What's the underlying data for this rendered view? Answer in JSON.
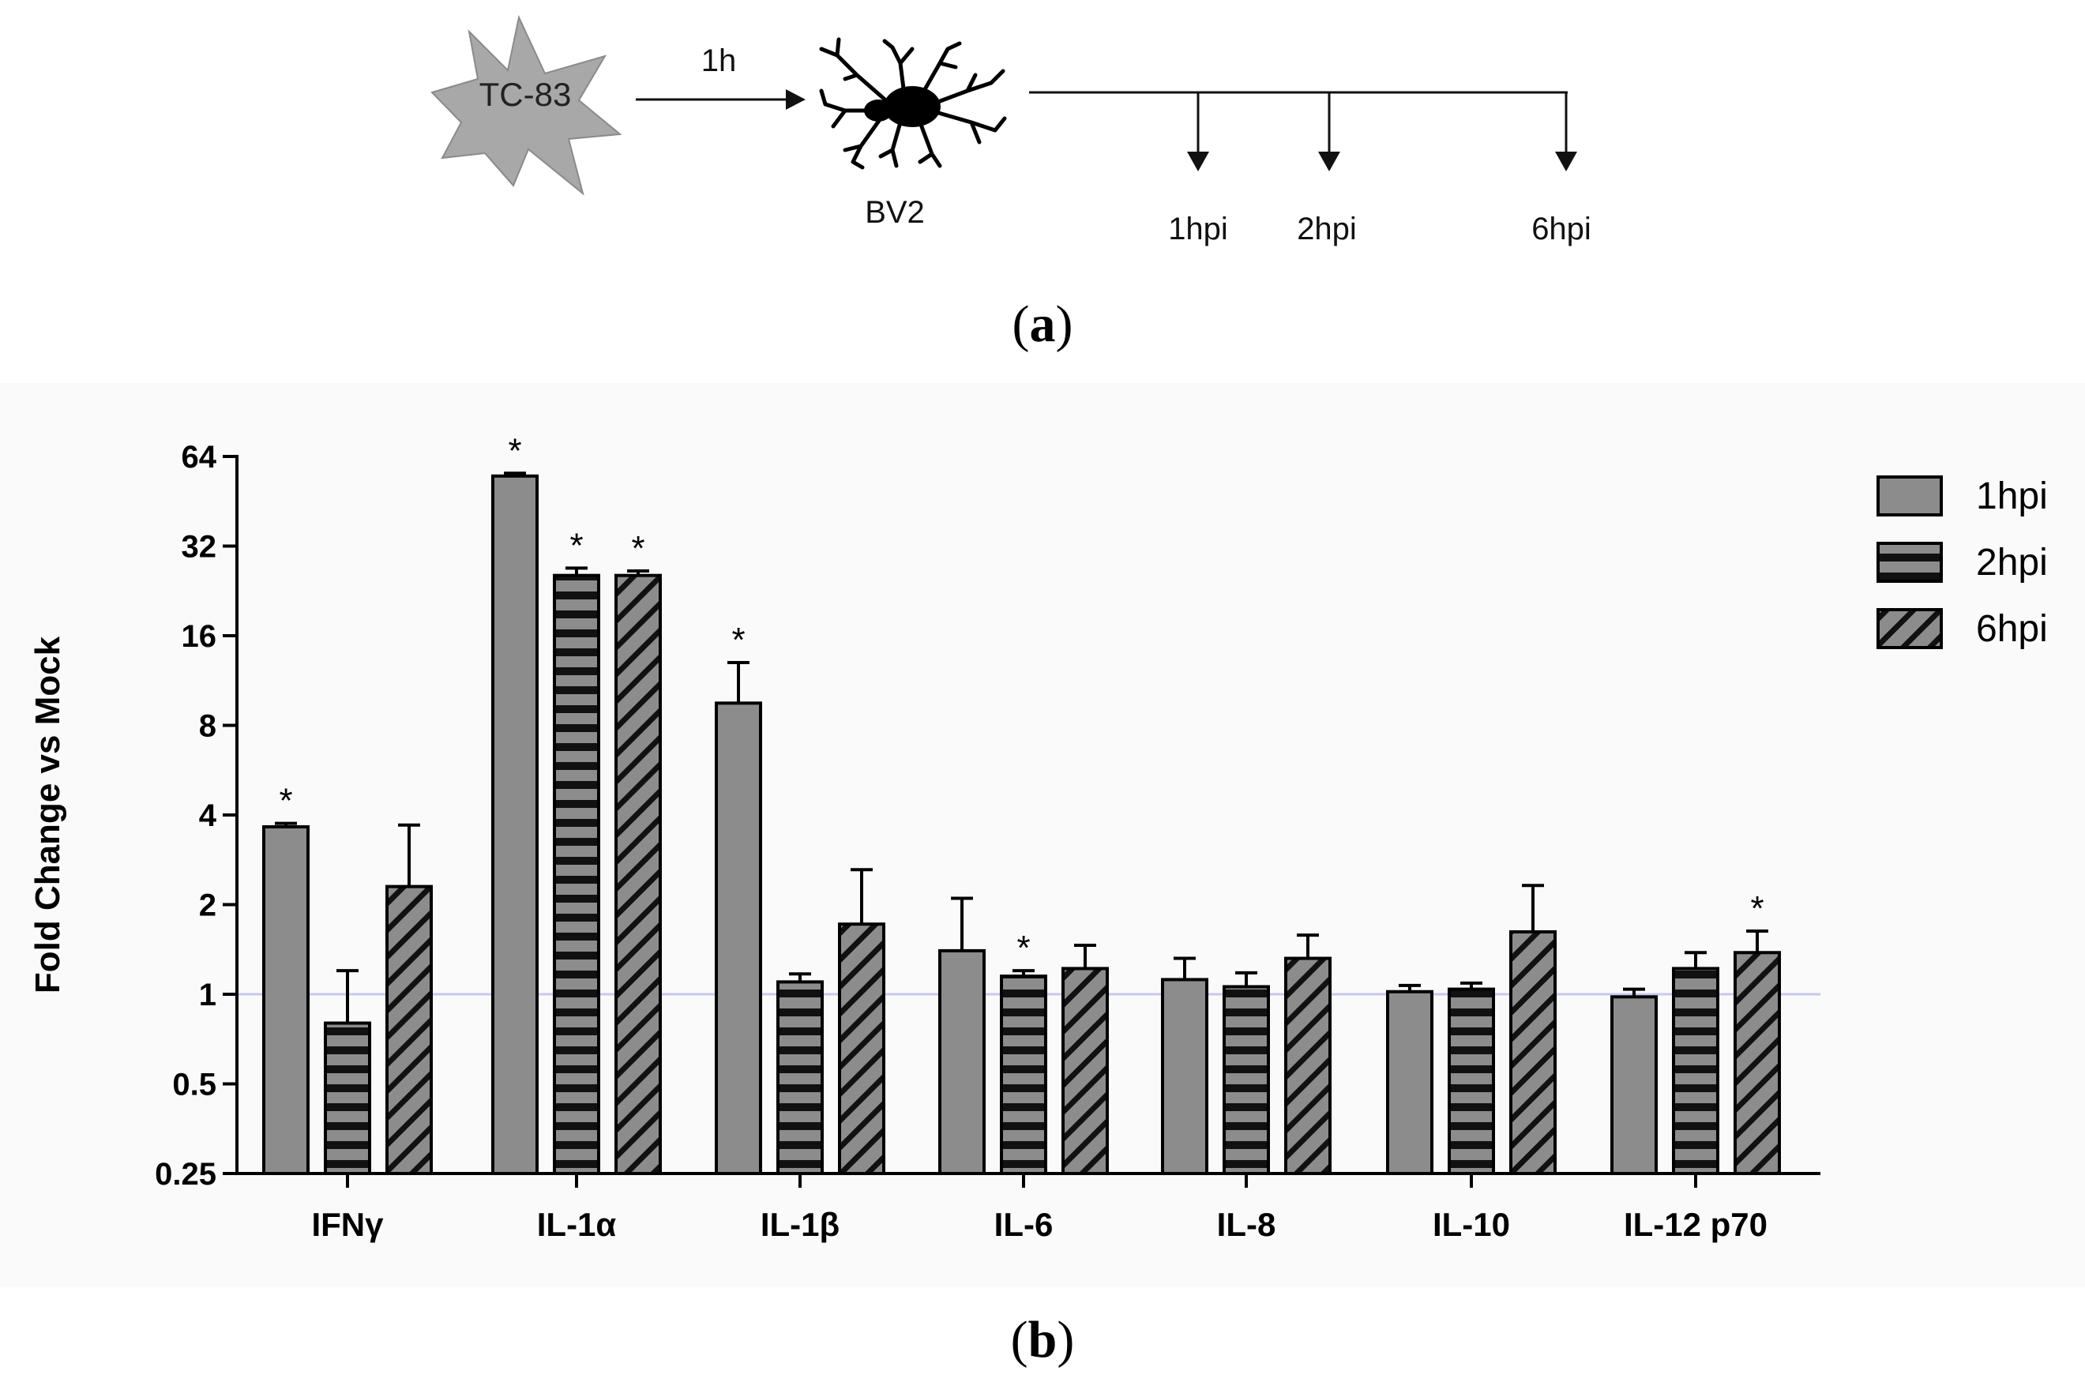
{
  "panel_a": {
    "label": "a",
    "virus_label": "TC-83",
    "incubation_label": "1h",
    "cell_label": "BV2",
    "timepoints": [
      "1hpi",
      "2hpi",
      "6hpi"
    ]
  },
  "panel_b": {
    "label": "b"
  },
  "colors": {
    "bar_fill": "#8c8c8c",
    "bar_stroke": "#000000",
    "axis": "#000000",
    "reference_line": "#c8c8ee",
    "panel_background": "#fafafa"
  },
  "chart_data": {
    "type": "bar",
    "title": "",
    "xlabel": "",
    "ylabel": "Fold Change vs Mock",
    "yscale": "log2",
    "ylim": [
      0.25,
      64
    ],
    "yticks": [
      0.25,
      0.5,
      1,
      2,
      4,
      8,
      16,
      32,
      64
    ],
    "ytick_labels": [
      "0.25",
      "0.5",
      "1",
      "2",
      "4",
      "8",
      "16",
      "32",
      "64"
    ],
    "reference_line": 1,
    "categories": [
      "IFNγ",
      "IL-1α",
      "IL-1β",
      "IL-6",
      "IL-8",
      "IL-10",
      "IL-12 p70"
    ],
    "legend_position": "top-right",
    "significance_marker": "*",
    "series": [
      {
        "name": "1hpi",
        "pattern": "solid",
        "values": [
          3.65,
          55,
          9.5,
          1.4,
          1.12,
          1.02,
          0.98
        ],
        "errors": [
          0.1,
          1.2,
          3.5,
          0.7,
          0.2,
          0.05,
          0.06
        ],
        "significant": [
          true,
          true,
          true,
          false,
          false,
          false,
          false
        ]
      },
      {
        "name": "2hpi",
        "pattern": "horizontal-stripes",
        "values": [
          0.8,
          25.5,
          1.1,
          1.15,
          1.06,
          1.04,
          1.22
        ],
        "errors": [
          0.4,
          1.5,
          0.07,
          0.05,
          0.12,
          0.05,
          0.16
        ],
        "significant": [
          false,
          true,
          false,
          true,
          false,
          false,
          false
        ]
      },
      {
        "name": "6hpi",
        "pattern": "diagonal-stripes",
        "values": [
          2.3,
          25.5,
          1.72,
          1.22,
          1.32,
          1.62,
          1.38
        ],
        "errors": [
          1.4,
          0.9,
          0.9,
          0.24,
          0.26,
          0.7,
          0.25
        ],
        "significant": [
          false,
          true,
          false,
          false,
          false,
          false,
          true
        ]
      }
    ]
  }
}
